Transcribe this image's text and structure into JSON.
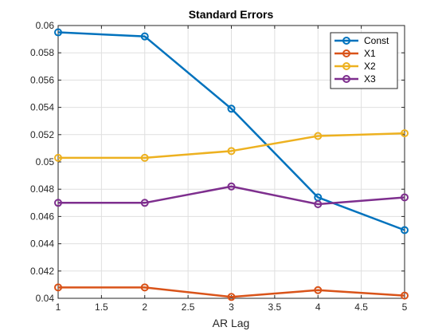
{
  "chart_data": {
    "type": "line",
    "title": "Standard  Errors",
    "xlabel": "AR Lag",
    "ylabel": "",
    "x": [
      1,
      2,
      3,
      4,
      5
    ],
    "xlim": [
      1,
      5
    ],
    "ylim": [
      0.04,
      0.06
    ],
    "xticks": [
      1,
      1.5,
      2,
      2.5,
      3,
      3.5,
      4,
      4.5,
      5
    ],
    "xtick_labels": [
      "1",
      "1.5",
      "2",
      "2.5",
      "3",
      "3.5",
      "4",
      "4.5",
      "5"
    ],
    "yticks": [
      0.04,
      0.042,
      0.044,
      0.046,
      0.048,
      0.05,
      0.052,
      0.054,
      0.056,
      0.058,
      0.06
    ],
    "ytick_labels": [
      "0.04",
      "0.042",
      "0.044",
      "0.046",
      "0.048",
      "0.05",
      "0.052",
      "0.054",
      "0.056",
      "0.058",
      "0.06"
    ],
    "grid": true,
    "legend_position": "top-right",
    "marker": "circle",
    "series": [
      {
        "name": "Const",
        "color": "#0072BD",
        "values": [
          0.0595,
          0.0592,
          0.0539,
          0.0474,
          0.045
        ]
      },
      {
        "name": "X1",
        "color": "#D95319",
        "values": [
          0.0408,
          0.0408,
          0.0401,
          0.0406,
          0.0402
        ]
      },
      {
        "name": "X2",
        "color": "#EDB120",
        "values": [
          0.0503,
          0.0503,
          0.0508,
          0.0519,
          0.0521
        ]
      },
      {
        "name": "X3",
        "color": "#7E2F8E",
        "values": [
          0.047,
          0.047,
          0.0482,
          0.0469,
          0.0474
        ]
      }
    ]
  }
}
